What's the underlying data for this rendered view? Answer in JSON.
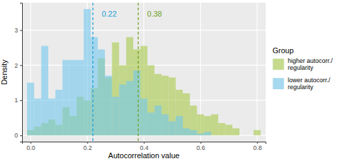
{
  "chart_data": {
    "type": "histogram",
    "x_label": "Autocorrelation value",
    "y_label": "Density",
    "legend_title": "Group",
    "legend": "right",
    "grid": true,
    "xlim": [
      -0.03,
      0.83
    ],
    "ylim": [
      -0.18,
      3.78
    ],
    "xticks": [
      {
        "value": 0,
        "label": "0.0"
      },
      0.2,
      0.4,
      0.6,
      0.8
    ],
    "yticks": [
      0,
      1,
      2,
      3
    ],
    "bins": [
      -0.0125,
      0.0125,
      0.0375,
      0.0625,
      0.0875,
      0.1125,
      0.1375,
      0.1625,
      0.1875,
      0.2125,
      0.2375,
      0.2625,
      0.2875,
      0.3125,
      0.3375,
      0.3625,
      0.3875,
      0.4125,
      0.4375,
      0.4625,
      0.4875,
      0.5125,
      0.5375,
      0.5625,
      0.5875,
      0.6125,
      0.6375,
      0.6625,
      0.6875,
      0.7125,
      0.7375,
      0.7625,
      0.7875,
      0.8125
    ],
    "series": [
      {
        "name": "higher autocorr./\nregularity",
        "color": "#a9c94a",
        "values": [
          0.15,
          0.25,
          0.35,
          0.45,
          0.3,
          0.8,
          0.55,
          1.1,
          1.0,
          1.35,
          2.2,
          1.65,
          2.65,
          2.0,
          2.8,
          2.45,
          2.55,
          2.0,
          1.75,
          1.7,
          1.65,
          1.3,
          1.2,
          0.85,
          0.6,
          0.55,
          0.6,
          0.35,
          0.3,
          0.2,
          0,
          0,
          0.15
        ]
      },
      {
        "name": "lower autocorr./\nregularity",
        "color": "#73c8ee",
        "values": [
          1.5,
          1.05,
          2.55,
          1.05,
          1.3,
          2.15,
          2.15,
          2.15,
          3.6,
          2.8,
          2.45,
          1.7,
          1.1,
          1.45,
          1.55,
          1.85,
          1.05,
          0.65,
          0.85,
          0.6,
          0.4,
          0.55,
          0.2,
          0.15,
          0.05,
          0.1,
          0,
          0,
          0,
          0,
          0,
          0,
          0
        ]
      }
    ],
    "annotations": [
      {
        "x": 0.22,
        "text": "0.22",
        "color": "#1a9fd9",
        "line_style": "dashed"
      },
      {
        "x": 0.38,
        "text": "0.38",
        "color": "#6e9e1c",
        "line_style": "dashed"
      }
    ]
  }
}
